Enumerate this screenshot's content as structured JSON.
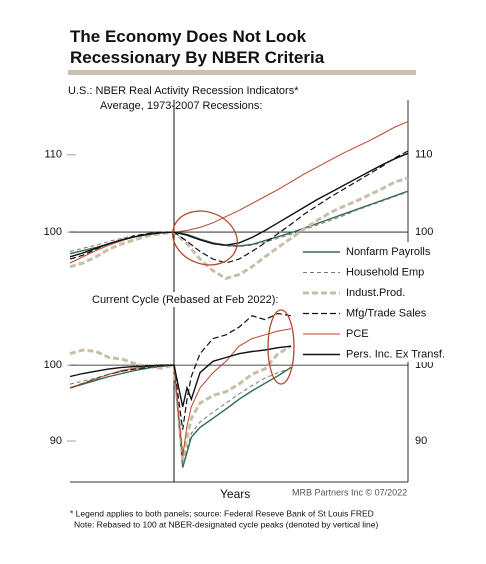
{
  "chart_data": [
    {
      "type": "line",
      "title": "The Economy Does Not Look Recessionary By NBER Criteria",
      "subtitle": "U.S.: NBER Real Activity Recession Indicators*",
      "panel_title": "Average, 1973-2007 Recessions:",
      "x_label": "Years",
      "source": "MRB Partners Inc © 07/2022",
      "notes": [
        "* Legend applies to both panels; source: Federal Reseve Bank of St Louis FRED",
        "Note: Rebased to 100 at NBER-designated cycle peaks (denoted by vertical line)"
      ],
      "xlim": [
        -24,
        54
      ],
      "ylim": [
        92.5,
        117.1
      ],
      "yticks": [
        100,
        110
      ],
      "hline": 100,
      "vline": 0,
      "x": [
        -24,
        -21,
        -18,
        -15,
        -12,
        -9,
        -6,
        -3,
        0,
        3,
        6,
        9,
        12,
        15,
        18,
        21,
        24,
        27,
        30,
        33,
        36,
        39,
        42,
        45,
        48,
        51,
        54
      ],
      "series": [
        {
          "name": "Nonfarm Payrolls",
          "color": "#2e6b4f",
          "dash": "none",
          "width": 1.4,
          "values": [
            97.2,
            97.6,
            98.0,
            98.5,
            99.0,
            99.4,
            99.7,
            99.9,
            100,
            99.7,
            99.1,
            98.6,
            98.3,
            98.2,
            98.4,
            98.9,
            99.4,
            99.9,
            100.5,
            101.1,
            101.7,
            102.3,
            102.9,
            103.5,
            104.1,
            104.7,
            105.3
          ]
        },
        {
          "name": "Household Emp",
          "color": "#777777",
          "dash": "4 3",
          "width": 1,
          "values": [
            97.5,
            97.9,
            98.3,
            98.8,
            99.2,
            99.6,
            99.8,
            100,
            100,
            99.6,
            99.0,
            98.5,
            98.2,
            98.1,
            98.3,
            98.7,
            99.2,
            99.7,
            100.3,
            100.9,
            101.5,
            102.1,
            102.8,
            103.4,
            104.0,
            104.6,
            105.2
          ]
        },
        {
          "name": "Indust.Prod.",
          "color": "#c9bfa8",
          "dash": "6 3",
          "width": 3,
          "values": [
            95.5,
            96.0,
            96.8,
            97.8,
            98.5,
            99.0,
            99.5,
            99.8,
            100,
            98.5,
            96.5,
            95.0,
            94.0,
            94.5,
            95.5,
            96.8,
            98.0,
            99.2,
            100.4,
            101.5,
            102.5,
            103.3,
            104.0,
            104.8,
            105.6,
            106.5,
            107.0
          ]
        },
        {
          "name": "Mfg/Trade Sales",
          "color": "#111111",
          "dash": "6 3",
          "width": 1.2,
          "values": [
            96.5,
            97.0,
            97.8,
            98.5,
            99.0,
            99.5,
            99.8,
            100,
            100,
            98.8,
            97.5,
            96.5,
            96.0,
            96.5,
            97.5,
            98.6,
            99.8,
            101,
            102.3,
            103.4,
            104.5,
            105.5,
            106.5,
            107.5,
            108.5,
            109.6,
            110.5
          ]
        },
        {
          "name": "PCE",
          "color": "#b5472e",
          "dash": "none",
          "width": 1,
          "values": [
            96.0,
            96.8,
            97.6,
            98.3,
            98.9,
            99.4,
            99.7,
            99.9,
            100,
            100.2,
            100.6,
            101.2,
            102.0,
            102.8,
            103.7,
            104.6,
            105.5,
            106.5,
            107.5,
            108.4,
            109.3,
            110.2,
            111.0,
            111.8,
            112.7,
            113.6,
            114.3
          ]
        },
        {
          "name": "Pers. Inc. Ex Transf.",
          "color": "#111111",
          "dash": "none",
          "width": 1.4,
          "values": [
            96.8,
            97.3,
            97.9,
            98.5,
            99.0,
            99.4,
            99.7,
            99.9,
            100,
            99.6,
            99.0,
            98.5,
            98.3,
            98.6,
            99.3,
            100.2,
            101.2,
            102.2,
            103.2,
            104.2,
            105.1,
            106.0,
            106.9,
            107.8,
            108.7,
            109.5,
            110.2
          ]
        }
      ]
    },
    {
      "type": "line",
      "panel_title": "Current Cycle (Rebased at Feb 2022):",
      "xlim": [
        -24,
        54
      ],
      "ylim": [
        84.6,
        109.9
      ],
      "yticks": [
        90,
        100
      ],
      "hline": 100,
      "x": [
        -24,
        -21,
        -18,
        -15,
        -12,
        -9,
        -6,
        -3,
        0,
        2,
        3,
        4,
        6,
        9,
        12,
        15,
        18,
        21,
        24,
        27
      ],
      "series": [
        {
          "color": "#2e6b4f",
          "dash": "none",
          "width": 1.4,
          "values": [
            97.0,
            97.5,
            98.0,
            98.5,
            98.9,
            99.3,
            99.6,
            99.8,
            100,
            86.5,
            88.5,
            90.5,
            91.8,
            93.0,
            94.2,
            95.5,
            96.6,
            97.6,
            98.6,
            99.7
          ]
        },
        {
          "color": "#777777",
          "dash": "4 3",
          "width": 1,
          "values": [
            97.5,
            97.9,
            98.3,
            98.8,
            99.2,
            99.5,
            99.8,
            99.9,
            100,
            86.8,
            89.0,
            91.0,
            92.5,
            93.8,
            95.0,
            96.2,
            97.3,
            98.3,
            99.0,
            99.6
          ]
        },
        {
          "color": "#c9bfa8",
          "dash": "6 3",
          "width": 3,
          "values": [
            101.5,
            102.0,
            101.8,
            101.0,
            100.8,
            100.2,
            99.8,
            99.6,
            100,
            87.5,
            90.5,
            93.0,
            95.0,
            96.0,
            96.5,
            97.5,
            98.8,
            99.5,
            101.5,
            102.5
          ]
        },
        {
          "color": "#111111",
          "dash": "6 3",
          "width": 1.2,
          "values": [
            97.0,
            97.6,
            98.2,
            98.8,
            99.2,
            99.5,
            99.7,
            99.9,
            100,
            91.5,
            95.5,
            98.5,
            101.5,
            103.5,
            104.0,
            105.0,
            106.5,
            106.0,
            106.8,
            106.5
          ]
        },
        {
          "color": "#b5472e",
          "dash": "none",
          "width": 1,
          "values": [
            97.0,
            97.6,
            98.2,
            98.8,
            99.3,
            99.6,
            99.8,
            100,
            100,
            88.0,
            92.0,
            94.5,
            97.0,
            99.0,
            100.5,
            102.5,
            103.5,
            104.0,
            104.5,
            104.8
          ]
        },
        {
          "color": "#111111",
          "dash": "none",
          "width": 1.4,
          "values": [
            98.5,
            98.9,
            99.2,
            99.5,
            99.7,
            99.8,
            99.9,
            100,
            100,
            94.5,
            97.0,
            95.5,
            99.0,
            100.5,
            101.0,
            101.5,
            101.8,
            102.0,
            102.3,
            102.5
          ]
        }
      ]
    }
  ]
}
